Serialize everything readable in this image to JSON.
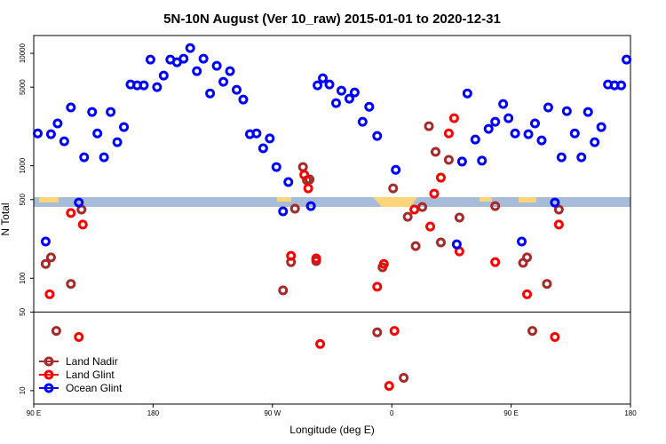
{
  "chart_data": {
    "type": "scatter",
    "title": "5N-10N August (Ver 10_raw)   2015-01-01 to 2020-12-31",
    "x_label": "Longitude (deg E)",
    "y_label": "N Total",
    "log_y": true,
    "xlim": [
      90,
      540
    ],
    "ylim": [
      7.6,
      14400
    ],
    "xticks": [
      {
        "value": 90,
        "label": "90 E"
      },
      180,
      {
        "value": 270,
        "label": "90 W"
      },
      {
        "value": 360,
        "label": "0"
      },
      {
        "value": 450,
        "label": "90 E"
      },
      {
        "value": 540,
        "label": "180"
      }
    ],
    "yticks": [
      10,
      50,
      100,
      500,
      1000,
      5000,
      10000
    ],
    "hline": 50,
    "legend": "bottom-left",
    "series": [
      {
        "name": "Land Nadir",
        "color": "#a52a2a",
        "x": [
          99,
          103,
          107,
          118,
          126,
          278,
          284,
          287,
          293,
          296,
          298,
          303,
          349,
          353,
          361,
          369,
          372,
          378,
          383,
          388,
          393,
          397,
          403,
          411,
          438,
          459,
          462,
          466,
          477,
          486
        ],
        "values": [
          134,
          153,
          34,
          89,
          408,
          78,
          139,
          415,
          975,
          743,
          756,
          142,
          33,
          125,
          630,
          13,
          352,
          193,
          430,
          2250,
          1330,
          208,
          1130,
          346,
          438,
          137,
          153,
          34,
          89,
          408
        ]
      },
      {
        "name": "Land Glint",
        "color": "#ff0000",
        "x": [
          102,
          118,
          124,
          127,
          284,
          294,
          297,
          303,
          306,
          349,
          354,
          358,
          362,
          377,
          389,
          392,
          397,
          403,
          407,
          411,
          438,
          462,
          483,
          486
        ],
        "values": [
          72,
          380,
          30,
          300,
          158,
          830,
          630,
          150,
          26,
          84,
          134,
          11,
          34,
          408,
          288,
          565,
          784,
          1940,
          2650,
          173,
          139,
          72,
          30,
          300
        ]
      },
      {
        "name": "Ocean Glint",
        "color": "#0000ff",
        "x": [
          93,
          103,
          108,
          113,
          118,
          128,
          134,
          138,
          143,
          148,
          153,
          158,
          163,
          168,
          173,
          178,
          183,
          188,
          193,
          198,
          203,
          208,
          213,
          218,
          223,
          228,
          233,
          238,
          243,
          248,
          253,
          258,
          263,
          268,
          273,
          278,
          282,
          299,
          304,
          308,
          313,
          318,
          322,
          328,
          332,
          338,
          343,
          349,
          363,
          99,
          124,
          409,
          413,
          417,
          423,
          428,
          433,
          438,
          444,
          448,
          453,
          458,
          463,
          468,
          473,
          478,
          483,
          488,
          492,
          498,
          503,
          508,
          513,
          518,
          523,
          528,
          533,
          537
        ],
        "values": [
          1940,
          1910,
          2380,
          1650,
          3300,
          1190,
          3010,
          1940,
          1190,
          3010,
          1620,
          2210,
          5280,
          5190,
          5190,
          8790,
          5000,
          6340,
          8790,
          8320,
          8950,
          11140,
          6940,
          8950,
          4400,
          7740,
          5580,
          6940,
          4740,
          3880,
          1910,
          1940,
          1430,
          1750,
          975,
          393,
          716,
          438,
          5190,
          6000,
          5280,
          3610,
          4650,
          3950,
          4490,
          2460,
          3350,
          1840,
          920,
          212,
          471,
          200,
          1090,
          4400,
          1710,
          1110,
          2130,
          2460,
          3540,
          2650,
          1940,
          212,
          1910,
          2380,
          1680,
          3300,
          471,
          1190,
          3060,
          1940,
          1190,
          3010,
          1620,
          2210,
          5280,
          5190,
          5190,
          8790
        ]
      }
    ]
  }
}
